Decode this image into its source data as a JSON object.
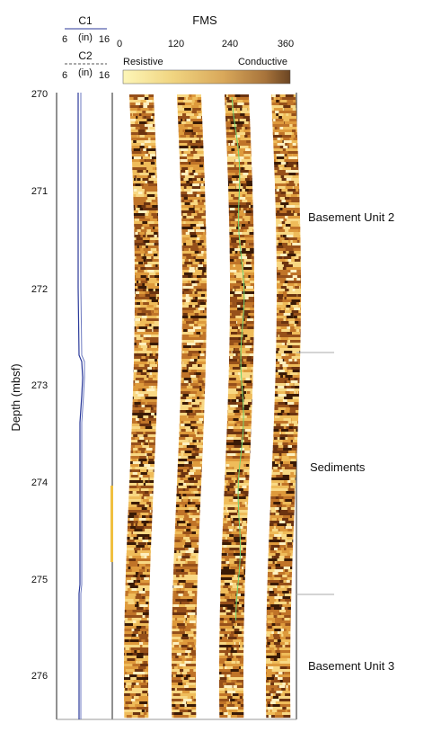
{
  "caliper": {
    "c1": {
      "label": "C1",
      "min": "6",
      "unit": "(in)",
      "max": "16"
    },
    "c2": {
      "label": "C2",
      "min": "6",
      "unit": "(in)",
      "max": "16"
    }
  },
  "fms": {
    "title": "FMS",
    "ticks": [
      "0",
      "120",
      "240",
      "360"
    ],
    "resistive_label": "Resistive",
    "conductive_label": "Conductive",
    "scale_colors": [
      "#fdf6b8",
      "#f0d480",
      "#d9a85a",
      "#a8743b",
      "#6b4523"
    ]
  },
  "depth_axis": {
    "label": "Depth (mbsf)",
    "ticks": [
      "270",
      "271",
      "272",
      "273",
      "274",
      "275",
      "276"
    ]
  },
  "units": [
    {
      "name": "Basement Unit 2"
    },
    {
      "name": "Sediments"
    },
    {
      "name": "Basement Unit 3"
    }
  ],
  "colors": {
    "caliper_line": "#2b3a9a",
    "image_light": "#f6d070",
    "image_dark": "#3a1a06",
    "trace_green": "#6fd36f"
  }
}
